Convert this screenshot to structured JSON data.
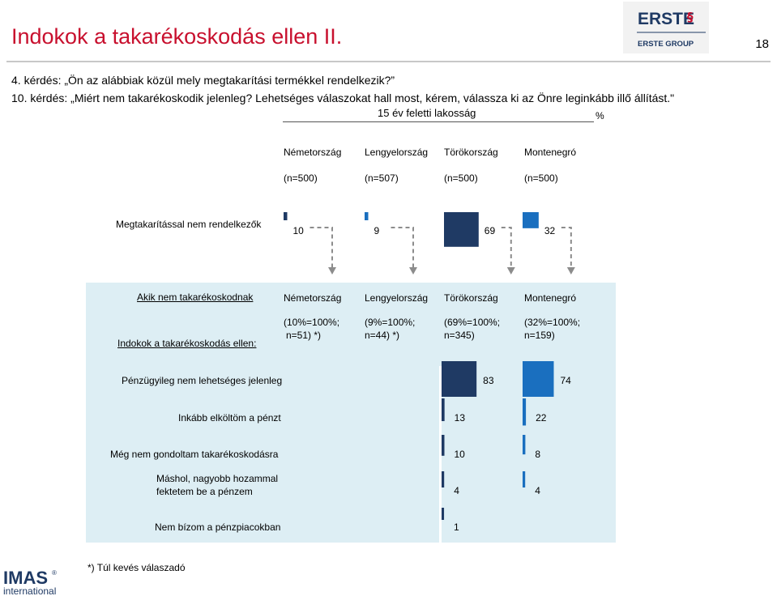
{
  "header": {
    "title": "Indokok a takarékoskodás ellen II.",
    "page_number": "18",
    "logo_name": "ERSTE",
    "logo_subtitle": "ERSTE GROUP"
  },
  "questions": [
    "4. kérdés: „Ön az alábbiak közül mely megtakarítási termékkel rendelkezik?”",
    "10. kérdés: „Miért nem takarékoskodik jelenleg? Lehetséges válaszokat hall most, kérem, válassza ki az Önre leginkább illő állítást.\""
  ],
  "population": "15 év feletti lakosság",
  "unit": "%",
  "countries": [
    "Németország",
    "Lengyelország",
    "Törökország",
    "Montenegró"
  ],
  "sample_sizes": [
    "(n=500)",
    "(n=507)",
    "(n=500)",
    "(n=500)"
  ],
  "top_row_label": "Megtakarítással nem rendelkezők",
  "lower_panel": {
    "heading": "Akik nem takarékoskodnak",
    "reasons_heading": "Indokok a takarékoskodás ellen:",
    "base_line1": [
      "(10%=100%;",
      "(9%=100%;",
      "(69%=100%;",
      "(32%=100%;"
    ],
    "base_line2": [
      "n=51) *)",
      "n=44) *)",
      "n=345)",
      "n=159)"
    ]
  },
  "footnote": "*) Túl kevés válaszadó",
  "footer_logo": {
    "name": "IMAS",
    "sub": "international"
  },
  "colors": {
    "title_red": "#c8102e",
    "dark_navy": "#1f3a64",
    "bright_blue": "#1a6fbf",
    "panel_bg": "#ddeef4"
  },
  "chart_data": [
    {
      "type": "bar",
      "categories": [
        "Németország",
        "Lengyelország",
        "Törökország",
        "Montenegró"
      ],
      "series": [
        {
          "name": "Megtakarítással nem rendelkezők",
          "values": [
            10,
            9,
            69,
            32
          ]
        }
      ],
      "ylim": [
        0,
        100
      ]
    },
    {
      "type": "bar",
      "categories": [
        "Pénzügyileg nem lehetséges jelenleg",
        "Inkább elköltöm a pénzt",
        "Még nem gondoltam takarékoskodásra",
        "Máshol, nagyobb hozammal fektetem be a pénzem",
        "Nem bízom a pénzpiacokban"
      ],
      "series": [
        {
          "name": "Törökország",
          "values": [
            83,
            13,
            10,
            4,
            1
          ]
        },
        {
          "name": "Montenegró",
          "values": [
            74,
            22,
            8,
            4,
            null
          ]
        }
      ],
      "xlim": [
        0,
        100
      ]
    }
  ]
}
